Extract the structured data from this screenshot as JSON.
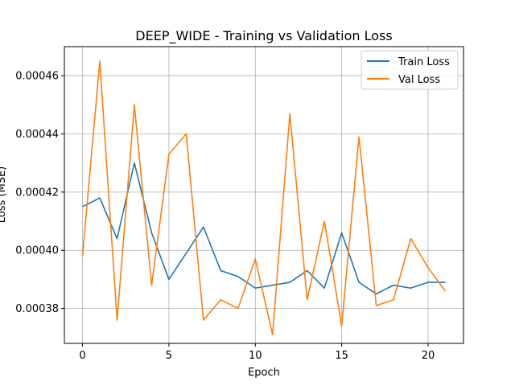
{
  "chart_data": {
    "type": "line",
    "title": "DEEP_WIDE - Training vs Validation Loss",
    "xlabel": "Epoch",
    "ylabel": "Loss (MSE)",
    "xlim": [
      -1.05,
      22.05
    ],
    "ylim": [
      0.000368,
      0.00047
    ],
    "xticks": [
      0,
      5,
      10,
      15,
      20
    ],
    "yticks": [
      0.00038,
      0.0004,
      0.00042,
      0.00044,
      0.00046
    ],
    "ytick_labels": [
      "0.00038",
      "0.00040",
      "0.00042",
      "0.00044",
      "0.00046"
    ],
    "grid": true,
    "legend_position": "upper right",
    "x": [
      0,
      1,
      2,
      3,
      4,
      5,
      6,
      7,
      8,
      9,
      10,
      11,
      12,
      13,
      14,
      15,
      16,
      17,
      18,
      19,
      20,
      21
    ],
    "series": [
      {
        "name": "Train Loss",
        "color": "#1f77b4",
        "values": [
          0.000415,
          0.000418,
          0.000404,
          0.00043,
          0.000406,
          0.00039,
          0.000399,
          0.000408,
          0.000393,
          0.000391,
          0.000387,
          0.000388,
          0.000389,
          0.000393,
          0.000387,
          0.000406,
          0.000389,
          0.000385,
          0.000388,
          0.000387,
          0.000389,
          0.000389
        ]
      },
      {
        "name": "Val Loss",
        "color": "#ff7f0e",
        "values": [
          0.000398,
          0.000465,
          0.000376,
          0.00045,
          0.000388,
          0.000433,
          0.00044,
          0.000376,
          0.000383,
          0.00038,
          0.000397,
          0.000371,
          0.000447,
          0.000383,
          0.00041,
          0.000374,
          0.000439,
          0.000381,
          0.000383,
          0.000404,
          0.000394,
          0.000386
        ]
      }
    ]
  }
}
